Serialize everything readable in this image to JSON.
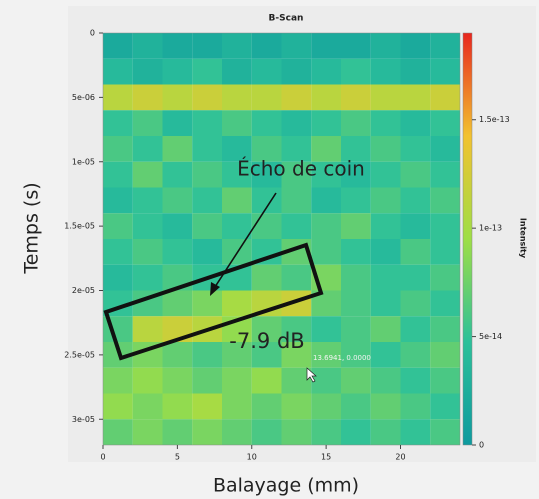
{
  "chart_data": {
    "type": "heatmap",
    "title": "B-Scan",
    "x_label": "Balayage (mm)",
    "y_label": "Temps (s)",
    "colorbar_label": "Intensity",
    "annotations": [
      "Écho de coin",
      "-7.9 dB",
      "13.6941, 0.0000"
    ],
    "xlim": [
      0,
      24
    ],
    "ylim": [
      0,
      3.2e-05
    ],
    "y_inverted": true,
    "zlim": [
      0,
      1.9e-13
    ],
    "xticks": [
      0,
      5,
      10,
      15,
      20
    ],
    "yticks": [
      0,
      {
        "value": 5e-06,
        "label": "5e-06"
      },
      {
        "value": 1e-05,
        "label": "1e-05"
      },
      {
        "value": 1.5e-05,
        "label": "1.5e-05"
      },
      {
        "value": 2e-05,
        "label": "2e-05"
      },
      {
        "value": 2.5e-05,
        "label": "2.5e-05"
      },
      {
        "value": 3e-05,
        "label": "3e-05"
      }
    ],
    "zticks": [
      0,
      5e-14,
      1e-13,
      1.5e-13
    ],
    "colormap": [
      "#0e9a9e",
      "#2cc09a",
      "#9ede46",
      "#f2c230",
      "#e8261e"
    ],
    "x_bins": [
      0,
      2,
      4,
      6,
      8,
      10,
      12,
      14,
      16,
      18,
      20,
      22,
      24
    ],
    "y_bins": [
      0,
      2e-06,
      4e-06,
      6e-06,
      8e-06,
      1e-05,
      1.2e-05,
      1.4e-05,
      1.6e-05,
      1.8e-05,
      2e-05,
      2.2e-05,
      2.4e-05,
      2.6e-05,
      2.8e-05,
      3e-05,
      3.2e-05
    ],
    "z": [
      [
        2e-14,
        3e-14,
        2e-14,
        2e-14,
        3e-14,
        2e-14,
        3e-14,
        2e-14,
        2e-14,
        3e-14,
        2e-14,
        3e-14
      ],
      [
        4e-14,
        3e-14,
        4e-14,
        5e-14,
        3e-14,
        4e-14,
        3e-14,
        4e-14,
        5e-14,
        4e-14,
        3e-14,
        4e-14
      ],
      [
        1.1e-13,
        1.2e-13,
        1.1e-13,
        1.2e-13,
        1.1e-13,
        1.1e-13,
        1.2e-13,
        1.1e-13,
        1.2e-13,
        1.1e-13,
        1.1e-13,
        1.2e-13
      ],
      [
        5e-14,
        6e-14,
        4e-14,
        5e-14,
        6e-14,
        5e-14,
        4e-14,
        5e-14,
        6e-14,
        5e-14,
        4e-14,
        5e-14
      ],
      [
        6e-14,
        5e-14,
        7e-14,
        5e-14,
        4e-14,
        6e-14,
        5e-14,
        7e-14,
        5e-14,
        6e-14,
        5e-14,
        4e-14
      ],
      [
        5e-14,
        7e-14,
        5e-14,
        6e-14,
        5e-14,
        4e-14,
        6e-14,
        5e-14,
        4e-14,
        5e-14,
        6e-14,
        5e-14
      ],
      [
        4e-14,
        5e-14,
        6e-14,
        5e-14,
        7e-14,
        5e-14,
        6e-14,
        4e-14,
        5e-14,
        6e-14,
        5e-14,
        6e-14
      ],
      [
        6e-14,
        5e-14,
        4e-14,
        6e-14,
        5e-14,
        6e-14,
        5e-14,
        6e-14,
        7e-14,
        5e-14,
        4e-14,
        5e-14
      ],
      [
        5e-14,
        6e-14,
        5e-14,
        4e-14,
        6e-14,
        5e-14,
        7e-14,
        6e-14,
        5e-14,
        4e-14,
        6e-14,
        5e-14
      ],
      [
        4e-14,
        5e-14,
        6e-14,
        5e-14,
        5e-14,
        7e-14,
        6e-14,
        8e-14,
        6e-14,
        5e-14,
        5e-14,
        6e-14
      ],
      [
        5e-14,
        6e-14,
        7e-14,
        8e-14,
        1e-13,
        1.1e-13,
        1.2e-13,
        7e-14,
        6e-14,
        5e-14,
        6e-14,
        5e-14
      ],
      [
        6e-14,
        1.1e-13,
        1.2e-13,
        1.1e-13,
        9e-14,
        7e-14,
        6e-14,
        5e-14,
        6e-14,
        7e-14,
        5e-14,
        6e-14
      ],
      [
        7e-14,
        8e-14,
        7e-14,
        6e-14,
        7e-14,
        6e-14,
        8e-14,
        7e-14,
        6e-14,
        5e-14,
        6e-14,
        7e-14
      ],
      [
        8e-14,
        9e-14,
        8e-14,
        7e-14,
        8e-14,
        9e-14,
        7e-14,
        6e-14,
        7e-14,
        6e-14,
        5e-14,
        6e-14
      ],
      [
        9e-14,
        8e-14,
        9e-14,
        1e-13,
        8e-14,
        7e-14,
        8e-14,
        7e-14,
        6e-14,
        7e-14,
        6e-14,
        5e-14
      ],
      [
        7e-14,
        8e-14,
        7e-14,
        8e-14,
        7e-14,
        6e-14,
        7e-14,
        6e-14,
        5e-14,
        6e-14,
        5e-14,
        6e-14
      ]
    ]
  }
}
